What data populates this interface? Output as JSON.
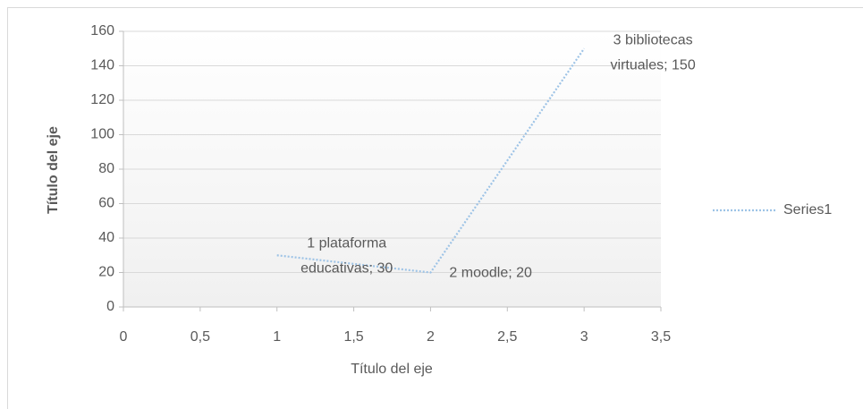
{
  "chart_data": {
    "type": "scatter",
    "x_label": "Título del eje",
    "y_label": "Título del eje",
    "series": [
      {
        "name": "Series1",
        "color": "#9dc3e6",
        "x": [
          1,
          2,
          3
        ],
        "values": [
          30,
          20,
          150
        ],
        "value_labels": [
          [
            "1 plataforma",
            "educativas; 30"
          ],
          [
            "2 moodle; 20"
          ],
          [
            "3 bibliotecas",
            "virtuales; 150"
          ]
        ]
      }
    ],
    "xlim": [
      0,
      3.5
    ],
    "xticks": [
      0,
      {
        "value": 0.5,
        "label": "0,5"
      },
      1,
      {
        "value": 1.5,
        "label": "1,5"
      },
      2,
      {
        "value": 2.5,
        "label": "2,5"
      },
      3,
      {
        "value": 3.5,
        "label": "3,5"
      }
    ],
    "ylim": [
      0,
      160
    ],
    "yticks": [
      0,
      20,
      40,
      60,
      80,
      100,
      120,
      140,
      160
    ],
    "grid": true,
    "legend": "right"
  }
}
